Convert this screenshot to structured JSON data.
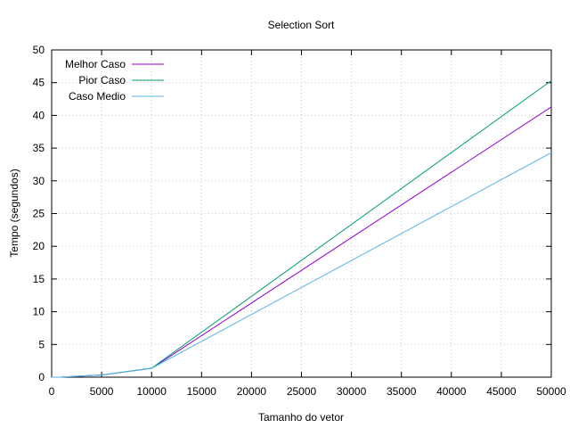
{
  "chart_data": {
    "type": "line",
    "title": "Selection Sort",
    "xlabel": "Tamanho do vetor",
    "ylabel": "Tempo (segundos)",
    "xlim": [
      0,
      50000
    ],
    "ylim": [
      0,
      50
    ],
    "xticks": [
      "0",
      "5000",
      "10000",
      "15000",
      "20000",
      "25000",
      "30000",
      "35000",
      "40000",
      "45000",
      "50000"
    ],
    "yticks": [
      "0",
      "5",
      "10",
      "15",
      "20",
      "25",
      "30",
      "35",
      "40",
      "45",
      "50"
    ],
    "grid": true,
    "legend_position": "top-left",
    "x": [
      0,
      1000,
      5000,
      10000,
      50000
    ],
    "series": [
      {
        "name": "Melhor Caso",
        "color": "#9400d3",
        "values": [
          0,
          0.01,
          0.33,
          1.35,
          41.3
        ]
      },
      {
        "name": "Pior Caso",
        "color": "#009e73",
        "values": [
          0,
          0.01,
          0.34,
          1.38,
          45.3
        ]
      },
      {
        "name": "Caso Medio",
        "color": "#56b4e9",
        "values": [
          0,
          0.01,
          0.33,
          1.35,
          34.3
        ]
      }
    ]
  }
}
